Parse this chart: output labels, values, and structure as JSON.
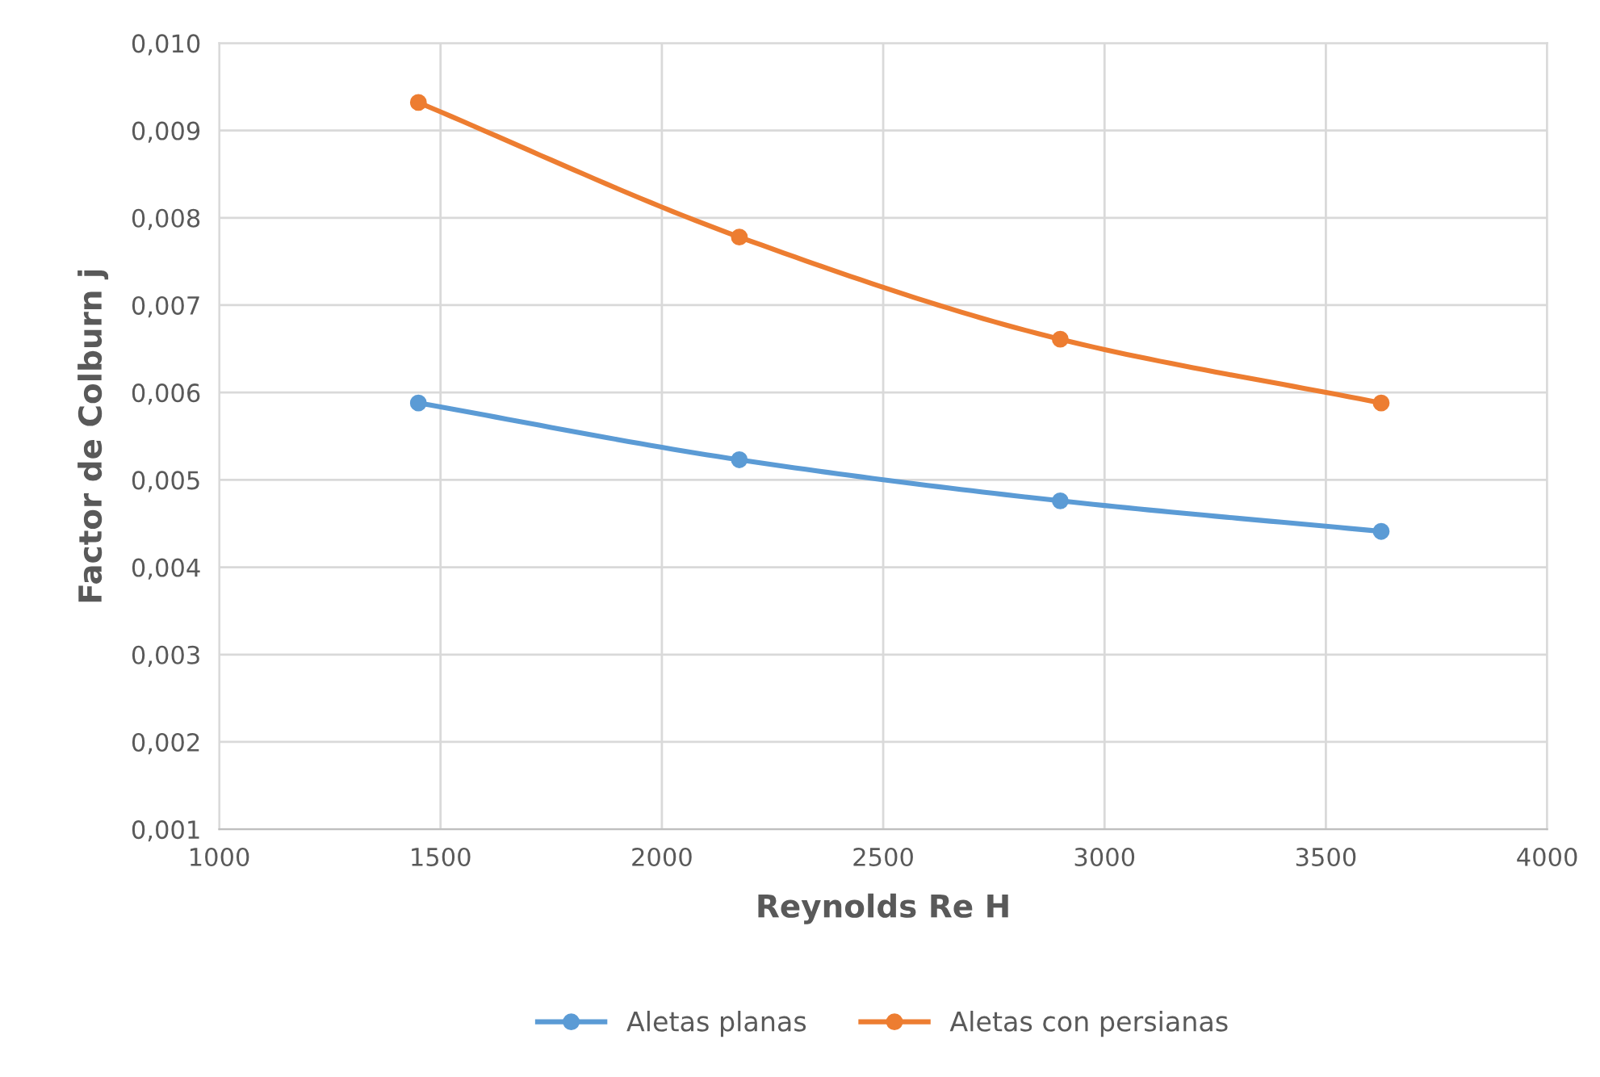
{
  "chart_data": {
    "type": "line",
    "xlabel": "Reynolds Re H",
    "ylabel": "Factor de Colburn j",
    "x": [
      1450,
      2175,
      2900,
      3625
    ],
    "series": [
      {
        "name": "Aletas planas",
        "color": "#5b9bd5",
        "values": [
          0.00588,
          0.00523,
          0.00476,
          0.00441
        ]
      },
      {
        "name": "Aletas con persianas",
        "color": "#ed7d31",
        "values": [
          0.00932,
          0.00778,
          0.00661,
          0.00588
        ]
      }
    ],
    "xlim": [
      1000,
      4000
    ],
    "xticks": [
      1000,
      1500,
      2000,
      2500,
      3000,
      3500,
      4000
    ],
    "ylim": [
      0.001,
      0.01
    ],
    "yticks": [
      {
        "value": 0.001,
        "label": "0,001"
      },
      {
        "value": 0.002,
        "label": "0,002"
      },
      {
        "value": 0.003,
        "label": "0,003"
      },
      {
        "value": 0.004,
        "label": "0,004"
      },
      {
        "value": 0.005,
        "label": "0,005"
      },
      {
        "value": 0.006,
        "label": "0,006"
      },
      {
        "value": 0.007,
        "label": "0,007"
      },
      {
        "value": 0.008,
        "label": "0,008"
      },
      {
        "value": 0.009,
        "label": "0,009"
      },
      {
        "value": 0.01,
        "label": "0,010"
      }
    ],
    "grid": true,
    "legend": "bottom",
    "marker": "circle",
    "line_style": "solid"
  }
}
